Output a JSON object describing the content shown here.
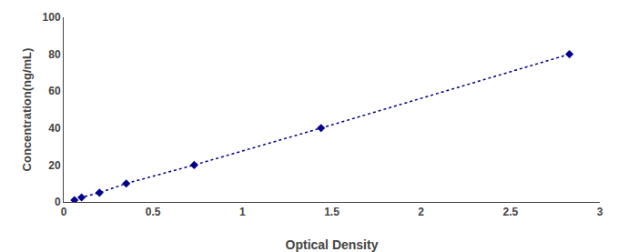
{
  "chart_data": {
    "type": "line",
    "x": [
      0.06,
      0.1,
      0.2,
      0.35,
      0.73,
      1.44,
      2.83
    ],
    "values": [
      1.0,
      2.5,
      5.0,
      10.0,
      20.0,
      40.0,
      80.0
    ],
    "color": "#00008B",
    "marker": "diamond",
    "line_style": "dotted",
    "xlabel": "Optical Density",
    "ylabel": "Concentration(ng/mL)",
    "xlim": [
      0,
      3.0
    ],
    "ylim": [
      0,
      100
    ],
    "xticks": [
      0,
      0.5,
      1,
      1.5,
      2,
      2.5,
      3
    ],
    "yticks": [
      0,
      20,
      40,
      60,
      80,
      100
    ],
    "grid": false
  }
}
